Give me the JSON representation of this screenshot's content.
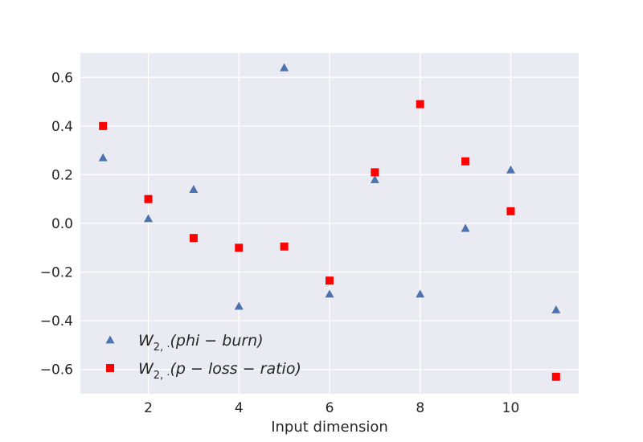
{
  "chart_data": {
    "type": "scatter",
    "title": "",
    "xlabel": "Input dimension",
    "ylabel": "",
    "xlim": [
      0.5,
      11.5
    ],
    "ylim": [
      -0.7,
      0.7
    ],
    "xticks": [
      2,
      4,
      6,
      8,
      10
    ],
    "yticks": [
      -0.6,
      -0.4,
      -0.2,
      0.0,
      0.2,
      0.4,
      0.6
    ],
    "xtick_labels": [
      "2",
      "4",
      "6",
      "8",
      "10"
    ],
    "ytick_labels": [
      "−0.6",
      "−0.4",
      "−0.2",
      "0.0",
      "0.2",
      "0.4",
      "0.6"
    ],
    "grid": true,
    "legend_position": "lower-left",
    "background_color": "#eaeaf2",
    "series": [
      {
        "name": "W2,·(phi − burn)",
        "legend_label": {
          "base": "W",
          "sub": "2, ·",
          "rest": "(phi − burn)"
        },
        "marker": "triangle",
        "color": "#4c72b0",
        "x": [
          1,
          2,
          3,
          4,
          5,
          6,
          7,
          8,
          9,
          10,
          11
        ],
        "y": [
          0.27,
          0.02,
          0.14,
          -0.34,
          0.64,
          -0.29,
          0.18,
          -0.29,
          -0.02,
          0.22,
          -0.355
        ]
      },
      {
        "name": "W2,·(p − loss − ratio)",
        "legend_label": {
          "base": "W",
          "sub": "2, ·",
          "rest": "(p − loss − ratio)"
        },
        "marker": "square",
        "color": "#ff0000",
        "x": [
          1,
          2,
          3,
          4,
          5,
          6,
          7,
          8,
          9,
          10,
          11
        ],
        "y": [
          0.4,
          0.1,
          -0.06,
          -0.1,
          -0.095,
          -0.235,
          0.21,
          0.49,
          0.255,
          0.05,
          -0.63
        ]
      }
    ]
  }
}
